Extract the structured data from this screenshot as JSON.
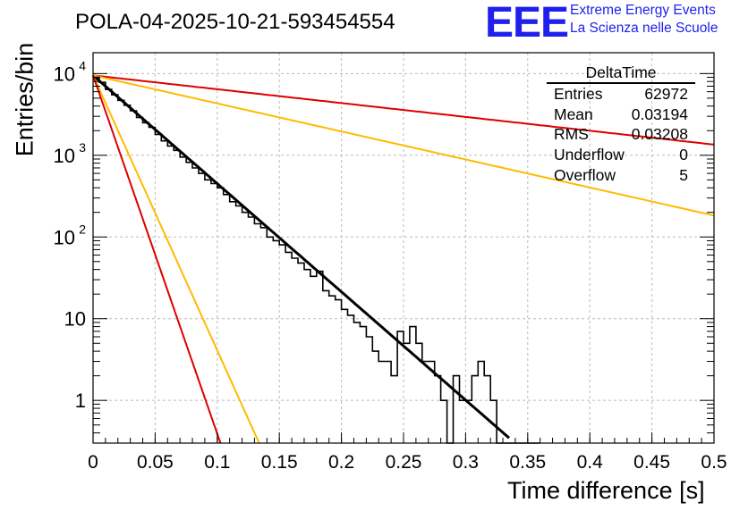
{
  "chart_data": {
    "type": "histogram",
    "title": "POLA-04-2025-10-21-593454554",
    "xlabel": "Time difference [s]",
    "ylabel": "Entries/bin",
    "xlim": [
      0,
      0.5
    ],
    "ylim": [
      0.3,
      18000
    ],
    "yscale": "log",
    "grid": true,
    "x_ticks": [
      {
        "v": 0,
        "label": "0"
      },
      {
        "v": 0.05,
        "label": "0.05"
      },
      {
        "v": 0.1,
        "label": "0.1"
      },
      {
        "v": 0.15,
        "label": "0.15"
      },
      {
        "v": 0.2,
        "label": "0.2"
      },
      {
        "v": 0.25,
        "label": "0.25"
      },
      {
        "v": 0.3,
        "label": "0.3"
      },
      {
        "v": 0.35,
        "label": "0.35"
      },
      {
        "v": 0.4,
        "label": "0.4"
      },
      {
        "v": 0.45,
        "label": "0.45"
      },
      {
        "v": 0.5,
        "label": "0.5"
      }
    ],
    "y_ticks": [
      {
        "v": 1,
        "label": "1"
      },
      {
        "v": 10,
        "label": "10"
      },
      {
        "v": 100,
        "label": "10",
        "exp": "2"
      },
      {
        "v": 1000,
        "label": "10",
        "exp": "3"
      },
      {
        "v": 10000,
        "label": "10",
        "exp": "4"
      }
    ],
    "bin_width": 0.005,
    "histogram": {
      "name": "DeltaTime",
      "values": [
        9000,
        7800,
        6400,
        5500,
        4700,
        4100,
        3500,
        2900,
        2500,
        2200,
        1800,
        1500,
        1300,
        1150,
        950,
        820,
        700,
        600,
        500,
        450,
        400,
        330,
        270,
        240,
        200,
        175,
        145,
        130,
        100,
        90,
        80,
        65,
        55,
        48,
        40,
        33,
        38,
        22,
        19,
        17,
        13,
        11,
        9,
        8,
        6,
        4,
        3,
        3,
        2,
        7,
        5,
        8,
        5,
        3,
        3,
        2,
        1,
        0.05,
        2,
        1,
        1,
        2,
        3,
        2,
        1,
        0.05,
        0.05,
        0.05,
        0.05,
        0.05,
        0.05,
        0.05
      ]
    },
    "series": [
      {
        "name": "fit",
        "color": "#000000",
        "amplitude": 9500,
        "slope": -30.5,
        "x_start": 0,
        "x_end": 0.335
      },
      {
        "name": "red-slow",
        "color": "#dd0000",
        "amplitude": 9500,
        "slope": -3.9,
        "x_start": 0,
        "x_end": 0.5
      },
      {
        "name": "orange-slow",
        "color": "#ffbb00",
        "amplitude": 9500,
        "slope": -7.9,
        "x_start": 0,
        "x_end": 0.5
      },
      {
        "name": "orange-fast",
        "color": "#ffbb00",
        "amplitude": 9500,
        "slope": -77.5,
        "x_start": 0,
        "x_end": 0.135
      },
      {
        "name": "red-fast",
        "color": "#dd0000",
        "amplitude": 9500,
        "slope": -101,
        "x_start": 0,
        "x_end": 0.105
      }
    ]
  },
  "logo": {
    "text": "EEE",
    "line1": "Extreme Energy Events",
    "line2": "La Scienza nelle Scuole"
  },
  "stats": {
    "title": "DeltaTime",
    "rows": [
      {
        "label": "Entries",
        "value": "62972"
      },
      {
        "label": "Mean",
        "value": "0.03194"
      },
      {
        "label": "RMS",
        "value": "0.03208"
      },
      {
        "label": "Underflow",
        "value": "0"
      },
      {
        "label": "Overflow",
        "value": "5"
      }
    ]
  }
}
